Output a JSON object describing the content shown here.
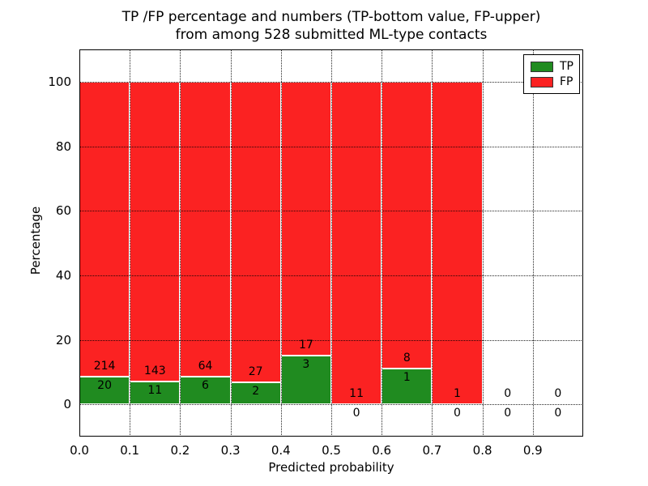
{
  "figure": {
    "title_line1": "TP /FP percentage and numbers (TP-bottom value, FP-upper)",
    "title_line2": "from among 528 submitted ML-type contacts"
  },
  "axes": {
    "xlabel": "Predicted probability",
    "ylabel": "Percentage",
    "x_tick_labels": [
      "0.0",
      "0.1",
      "0.2",
      "0.3",
      "0.4",
      "0.5",
      "0.6",
      "0.7",
      "0.8",
      "0.9"
    ],
    "x_tick_values": [
      0.0,
      0.1,
      0.2,
      0.3,
      0.4,
      0.5,
      0.6,
      0.7,
      0.8,
      0.9
    ],
    "y_tick_labels": [
      "0",
      "20",
      "40",
      "60",
      "80",
      "100"
    ],
    "y_tick_values": [
      0,
      20,
      40,
      60,
      80,
      100
    ],
    "xlim": [
      0.0,
      1.0
    ],
    "ylim": [
      -10,
      110
    ],
    "grid_style": "dotted",
    "grid_color": "#000000"
  },
  "legend": {
    "position": "upper-right",
    "items": [
      {
        "label": "TP",
        "color": "#208b20"
      },
      {
        "label": "FP",
        "color": "#fb2222"
      }
    ]
  },
  "chart_data": {
    "type": "bar",
    "variant": "stacked-100-percent",
    "title": "TP /FP percentage and numbers (TP-bottom value, FP-upper) from among 528 submitted ML-type contacts",
    "xlabel": "Predicted probability",
    "ylabel": "Percentage",
    "total_contacts": 528,
    "bin_width": 0.1,
    "series_names": [
      "TP",
      "FP"
    ],
    "colors": {
      "tp": "#208b20",
      "fp": "#fb2222"
    },
    "bins": [
      {
        "x_start": 0.0,
        "tp_count": 20,
        "fp_count": 214,
        "tp_pct": 8.5,
        "fp_pct": 91.5
      },
      {
        "x_start": 0.1,
        "tp_count": 11,
        "fp_count": 143,
        "tp_pct": 7.1,
        "fp_pct": 92.9
      },
      {
        "x_start": 0.2,
        "tp_count": 6,
        "fp_count": 64,
        "tp_pct": 8.6,
        "fp_pct": 91.4
      },
      {
        "x_start": 0.3,
        "tp_count": 2,
        "fp_count": 27,
        "tp_pct": 6.9,
        "fp_pct": 93.1
      },
      {
        "x_start": 0.4,
        "tp_count": 3,
        "fp_count": 17,
        "tp_pct": 15.0,
        "fp_pct": 85.0
      },
      {
        "x_start": 0.5,
        "tp_count": 0,
        "fp_count": 11,
        "tp_pct": 0.0,
        "fp_pct": 100.0
      },
      {
        "x_start": 0.6,
        "tp_count": 1,
        "fp_count": 8,
        "tp_pct": 11.1,
        "fp_pct": 88.9
      },
      {
        "x_start": 0.7,
        "tp_count": 0,
        "fp_count": 1,
        "tp_pct": 0.0,
        "fp_pct": 100.0
      },
      {
        "x_start": 0.8,
        "tp_count": 0,
        "fp_count": 0,
        "tp_pct": 0.0,
        "fp_pct": 0.0
      },
      {
        "x_start": 0.9,
        "tp_count": 0,
        "fp_count": 0,
        "tp_pct": 0.0,
        "fp_pct": 0.0
      }
    ]
  }
}
